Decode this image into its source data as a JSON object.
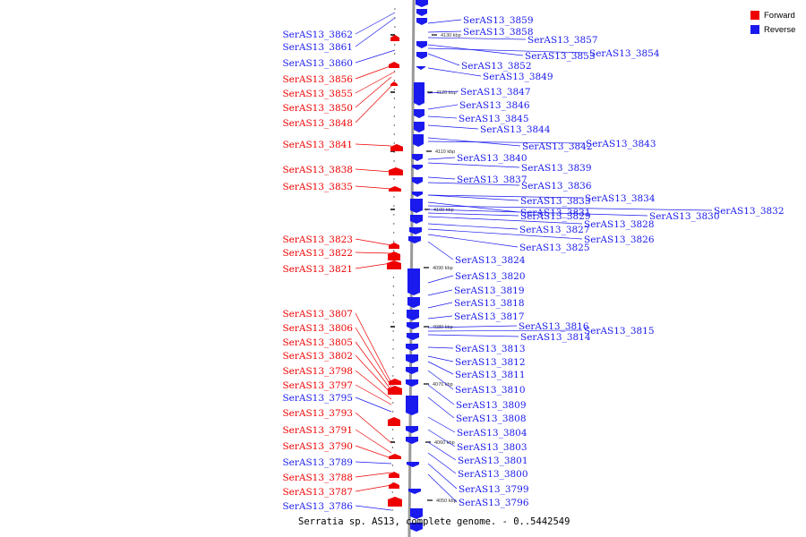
{
  "caption": "Serratia sp. AS13, complete genome. - 0..5442549",
  "legend": [
    {
      "label": "Forward",
      "color": "#ee0000"
    },
    {
      "label": "Reverse",
      "color": "#1a1aee"
    }
  ],
  "colors": {
    "forward": "#ee0000",
    "reverse": "#1a1aee",
    "backbone": "#888888"
  },
  "scale_labels": [
    "4130 kbp",
    "4120 kbp",
    "4110 kbp",
    "4100 kbp",
    "4090 kbp",
    "4080 kbp",
    "4070 kbp",
    "4060 kbp",
    "4050 kbp"
  ],
  "forward_genes": [
    "SerAS13_3862",
    "SerAS13_3861",
    "SerAS13_3860",
    "SerAS13_3856",
    "SerAS13_3855",
    "SerAS13_3850",
    "SerAS13_3848",
    "SerAS13_3841",
    "SerAS13_3838",
    "SerAS13_3835",
    "SerAS13_3823",
    "SerAS13_3822",
    "SerAS13_3821",
    "SerAS13_3807",
    "SerAS13_3806",
    "SerAS13_3805",
    "SerAS13_3802",
    "SerAS13_3798",
    "SerAS13_3797",
    "SerAS13_3795",
    "SerAS13_3793",
    "SerAS13_3791",
    "SerAS13_3790",
    "SerAS13_3789",
    "SerAS13_3788",
    "SerAS13_3787",
    "SerAS13_3786"
  ],
  "forward_colors": [
    "blue",
    "blue",
    "blue",
    "red",
    "red",
    "red",
    "red",
    "red",
    "red",
    "red",
    "red",
    "red",
    "red",
    "red",
    "red",
    "red",
    "red",
    "red",
    "red",
    "blue",
    "red",
    "red",
    "red",
    "blue",
    "red",
    "red",
    "blue"
  ],
  "reverse_genes": [
    "SerAS13_3859",
    "SerAS13_3858",
    "SerAS13_3857",
    "SerAS13_3853",
    "SerAS13_3854",
    "SerAS13_3852",
    "SerAS13_3849",
    "SerAS13_3847",
    "SerAS13_3846",
    "SerAS13_3845",
    "SerAS13_3844",
    "SerAS13_3842",
    "SerAS13_3843",
    "SerAS13_3840",
    "SerAS13_3839",
    "SerAS13_3837",
    "SerAS13_3836",
    "SerAS13_3833",
    "SerAS13_3834",
    "SerAS13_3831",
    "SerAS13_3830",
    "SerAS13_3832",
    "SerAS13_3829",
    "SerAS13_3828",
    "SerAS13_3827",
    "SerAS13_3826",
    "SerAS13_3825",
    "SerAS13_3824",
    "SerAS13_3820",
    "SerAS13_3819",
    "SerAS13_3818",
    "SerAS13_3817",
    "SerAS13_3816",
    "SerAS13_3815",
    "SerAS13_3814",
    "SerAS13_3813",
    "SerAS13_3812",
    "SerAS13_3811",
    "SerAS13_3810",
    "SerAS13_3809",
    "SerAS13_3808",
    "SerAS13_3804",
    "SerAS13_3803",
    "SerAS13_3801",
    "SerAS13_3800",
    "SerAS13_3799",
    "SerAS13_3796"
  ]
}
